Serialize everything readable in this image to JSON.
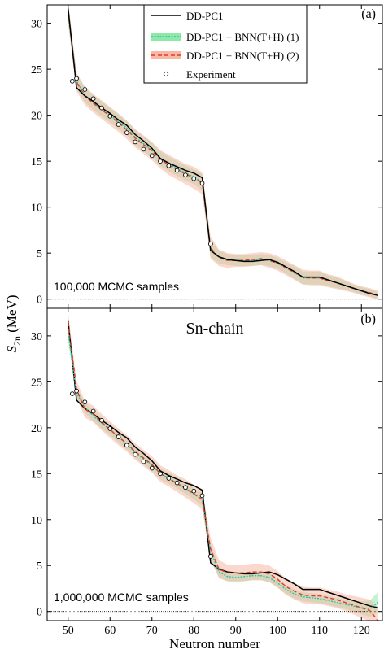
{
  "figure": {
    "shared_ylabel_main": "S",
    "shared_ylabel_sub": "2n",
    "shared_ylabel_unit": " (MeV)",
    "shared_xlabel": "Neutron number",
    "x_ticks": [
      "50",
      "60",
      "70",
      "80",
      "90",
      "100",
      "110",
      "120"
    ]
  },
  "legend": {
    "entries": [
      "DD-PC1",
      "DD-PC1 + BNN(T+H) (1)",
      "DD-PC1 + BNN(T+H) (2)",
      "Experiment"
    ]
  },
  "colors": {
    "model": "#000000",
    "bnn1_line": "#18c8b4",
    "bnn1_band": "#8fe8a8",
    "bnn2_line": "#e03c28",
    "bnn2_band": "#f7b8a6",
    "band_overlap": "#c9d89a",
    "zero_line": "#000000"
  },
  "chart_data": [
    {
      "type": "line",
      "panel_tag": "(a)",
      "annotation": "100,000 MCMC samples",
      "title": "",
      "xlabel": "Neutron number",
      "ylabel": "S2n (MeV)",
      "xlim": [
        45,
        125
      ],
      "ylim": [
        -1,
        32
      ],
      "y_ticks": [
        "0",
        "5",
        "10",
        "15",
        "20",
        "25",
        "30"
      ],
      "x": [
        50,
        52,
        54,
        56,
        58,
        60,
        62,
        64,
        66,
        68,
        70,
        72,
        74,
        76,
        78,
        80,
        82,
        84,
        86,
        88,
        90,
        92,
        94,
        96,
        98,
        100,
        102,
        104,
        106,
        108,
        110,
        112,
        114,
        116,
        118,
        120,
        122,
        124
      ],
      "series": [
        {
          "name": "DD-PC1",
          "values": [
            31.6,
            23.0,
            22.1,
            21.5,
            20.8,
            20.2,
            19.5,
            18.9,
            17.9,
            17.2,
            16.4,
            15.3,
            14.8,
            14.4,
            14.0,
            13.7,
            13.2,
            5.3,
            4.6,
            4.3,
            4.2,
            4.1,
            4.1,
            4.2,
            4.3,
            4.0,
            3.5,
            3.0,
            2.4,
            2.4,
            2.4,
            2.1,
            1.8,
            1.5,
            1.2,
            0.9,
            0.6,
            0.4
          ]
        },
        {
          "name": "DD-PC1 + BNN(T+H) (1)",
          "values": [
            31.0,
            23.7,
            22.2,
            21.4,
            20.7,
            20.0,
            19.3,
            18.6,
            17.6,
            16.9,
            16.2,
            15.3,
            14.7,
            14.2,
            13.7,
            13.3,
            12.7,
            5.4,
            4.6,
            4.3,
            4.2,
            4.2,
            4.2,
            4.3,
            4.2,
            3.9,
            3.4,
            2.9,
            2.3,
            2.3,
            2.3,
            2.0,
            1.8,
            1.5,
            1.2,
            0.9,
            0.7,
            0.4
          ]
        },
        {
          "name": "DD-PC1 + BNN(T+H) (2)",
          "values": [
            31.2,
            23.6,
            22.1,
            21.3,
            20.6,
            19.9,
            19.2,
            18.4,
            17.5,
            16.8,
            16.1,
            15.2,
            14.6,
            14.1,
            13.6,
            13.2,
            12.6,
            5.6,
            4.5,
            4.2,
            4.2,
            4.2,
            4.3,
            4.4,
            4.2,
            3.9,
            3.4,
            2.9,
            2.4,
            2.3,
            2.3,
            2.0,
            1.8,
            1.5,
            1.2,
            0.9,
            0.7,
            0.4
          ]
        },
        {
          "name": "Experiment",
          "x": [
            51,
            52,
            54,
            56,
            58,
            60,
            62,
            64,
            66,
            68,
            70,
            72,
            74,
            76,
            78,
            80,
            82,
            84
          ],
          "values": [
            23.7,
            24.0,
            22.8,
            21.8,
            20.8,
            19.9,
            19.0,
            18.1,
            17.1,
            16.3,
            15.6,
            15.0,
            14.5,
            14.0,
            13.5,
            13.1,
            12.6,
            6.0
          ]
        }
      ],
      "bands": [
        {
          "series": "DD-PC1 + BNN(T+H) (1)",
          "halfwidth": [
            1.0,
            0.8,
            0.8,
            0.8,
            0.8,
            0.8,
            0.8,
            0.8,
            0.8,
            0.8,
            0.8,
            0.8,
            0.8,
            0.8,
            0.8,
            0.8,
            0.9,
            0.9,
            0.7,
            0.6,
            0.6,
            0.6,
            0.6,
            0.6,
            0.6,
            0.6,
            0.6,
            0.7,
            0.7,
            0.7,
            0.7,
            0.6,
            0.6,
            0.5,
            0.4,
            0.4,
            0.4,
            0.4
          ]
        },
        {
          "series": "DD-PC1 + BNN(T+H) (2)",
          "halfwidth": [
            1.2,
            1.0,
            1.0,
            1.0,
            1.0,
            1.0,
            1.0,
            1.0,
            1.0,
            1.0,
            1.0,
            1.0,
            1.1,
            1.1,
            1.1,
            1.2,
            1.2,
            1.2,
            0.9,
            0.8,
            0.7,
            0.7,
            0.7,
            0.7,
            0.8,
            0.8,
            0.8,
            0.8,
            0.8,
            0.8,
            0.8,
            0.7,
            0.7,
            0.6,
            0.5,
            0.5,
            0.5,
            0.5
          ]
        }
      ]
    },
    {
      "type": "line",
      "panel_tag": "(b)",
      "panel_title": "Sn-chain",
      "annotation": "1,000,000 MCMC samples",
      "title": "",
      "xlabel": "Neutron number",
      "ylabel": "S2n (MeV)",
      "xlim": [
        45,
        125
      ],
      "ylim": [
        -1,
        33
      ],
      "y_ticks": [
        "0",
        "5",
        "10",
        "15",
        "20",
        "25",
        "30"
      ],
      "x": [
        50,
        52,
        54,
        56,
        58,
        60,
        62,
        64,
        66,
        68,
        70,
        72,
        74,
        76,
        78,
        80,
        82,
        84,
        86,
        88,
        90,
        92,
        94,
        96,
        98,
        100,
        102,
        104,
        106,
        108,
        110,
        112,
        114,
        116,
        118,
        120,
        122,
        124
      ],
      "series": [
        {
          "name": "DD-PC1",
          "values": [
            31.6,
            23.0,
            22.1,
            21.5,
            20.8,
            20.2,
            19.5,
            18.9,
            17.9,
            17.2,
            16.4,
            15.3,
            14.8,
            14.4,
            14.0,
            13.7,
            13.2,
            5.3,
            4.6,
            4.3,
            4.2,
            4.1,
            4.1,
            4.2,
            4.3,
            4.0,
            3.5,
            3.0,
            2.4,
            2.4,
            2.4,
            2.1,
            1.8,
            1.5,
            1.2,
            0.9,
            0.6,
            0.4
          ]
        },
        {
          "name": "DD-PC1 + BNN(T+H) (1)",
          "values": [
            30.3,
            23.8,
            22.2,
            21.3,
            20.5,
            19.8,
            19.0,
            18.2,
            17.3,
            16.6,
            15.9,
            15.0,
            14.5,
            14.0,
            13.4,
            12.8,
            12.2,
            6.5,
            4.3,
            3.8,
            3.7,
            3.8,
            3.9,
            3.9,
            3.7,
            3.1,
            2.4,
            1.9,
            1.6,
            1.5,
            1.4,
            1.2,
            1.0,
            0.8,
            0.6,
            0.4,
            0.3,
            1.0
          ]
        },
        {
          "name": "DD-PC1 + BNN(T+H) (2)",
          "values": [
            31.5,
            24.2,
            22.0,
            21.5,
            20.6,
            19.8,
            19.0,
            18.3,
            17.4,
            16.7,
            16.0,
            15.0,
            14.5,
            13.9,
            13.4,
            12.8,
            12.2,
            6.8,
            4.6,
            4.2,
            4.2,
            4.2,
            4.3,
            4.3,
            4.1,
            3.5,
            2.7,
            2.2,
            1.8,
            1.7,
            1.7,
            1.5,
            1.3,
            1.0,
            0.7,
            0.4,
            0.1,
            -1.0
          ]
        },
        {
          "name": "Experiment",
          "x": [
            51,
            52,
            54,
            56,
            58,
            60,
            62,
            64,
            66,
            68,
            70,
            72,
            74,
            76,
            78,
            80,
            82,
            84
          ],
          "values": [
            23.7,
            24.0,
            22.8,
            21.8,
            20.8,
            19.9,
            19.0,
            18.1,
            17.1,
            16.3,
            15.6,
            15.0,
            14.5,
            14.0,
            13.5,
            13.1,
            12.6,
            6.0
          ]
        }
      ],
      "bands": [
        {
          "series": "DD-PC1 + BNN(T+H) (1)",
          "halfwidth": [
            0.8,
            0.6,
            0.6,
            0.6,
            0.6,
            0.6,
            0.6,
            0.6,
            0.6,
            0.6,
            0.6,
            0.6,
            0.6,
            0.6,
            0.6,
            0.6,
            0.7,
            0.8,
            0.6,
            0.5,
            0.5,
            0.5,
            0.5,
            0.5,
            0.5,
            0.5,
            0.5,
            0.5,
            0.5,
            0.5,
            0.5,
            0.5,
            0.5,
            0.5,
            0.6,
            0.7,
            0.9,
            1.1
          ]
        },
        {
          "series": "DD-PC1 + BNN(T+H) (2)",
          "halfwidth": [
            1.0,
            0.9,
            0.9,
            0.9,
            0.9,
            0.9,
            0.9,
            0.9,
            0.9,
            0.9,
            0.9,
            0.9,
            0.9,
            0.9,
            1.0,
            1.0,
            1.1,
            1.2,
            1.0,
            0.9,
            0.9,
            0.9,
            0.9,
            0.9,
            0.9,
            0.9,
            0.9,
            0.9,
            0.9,
            0.9,
            0.9,
            0.9,
            0.9,
            0.9,
            1.0,
            1.1,
            1.2,
            1.4
          ]
        }
      ]
    }
  ]
}
